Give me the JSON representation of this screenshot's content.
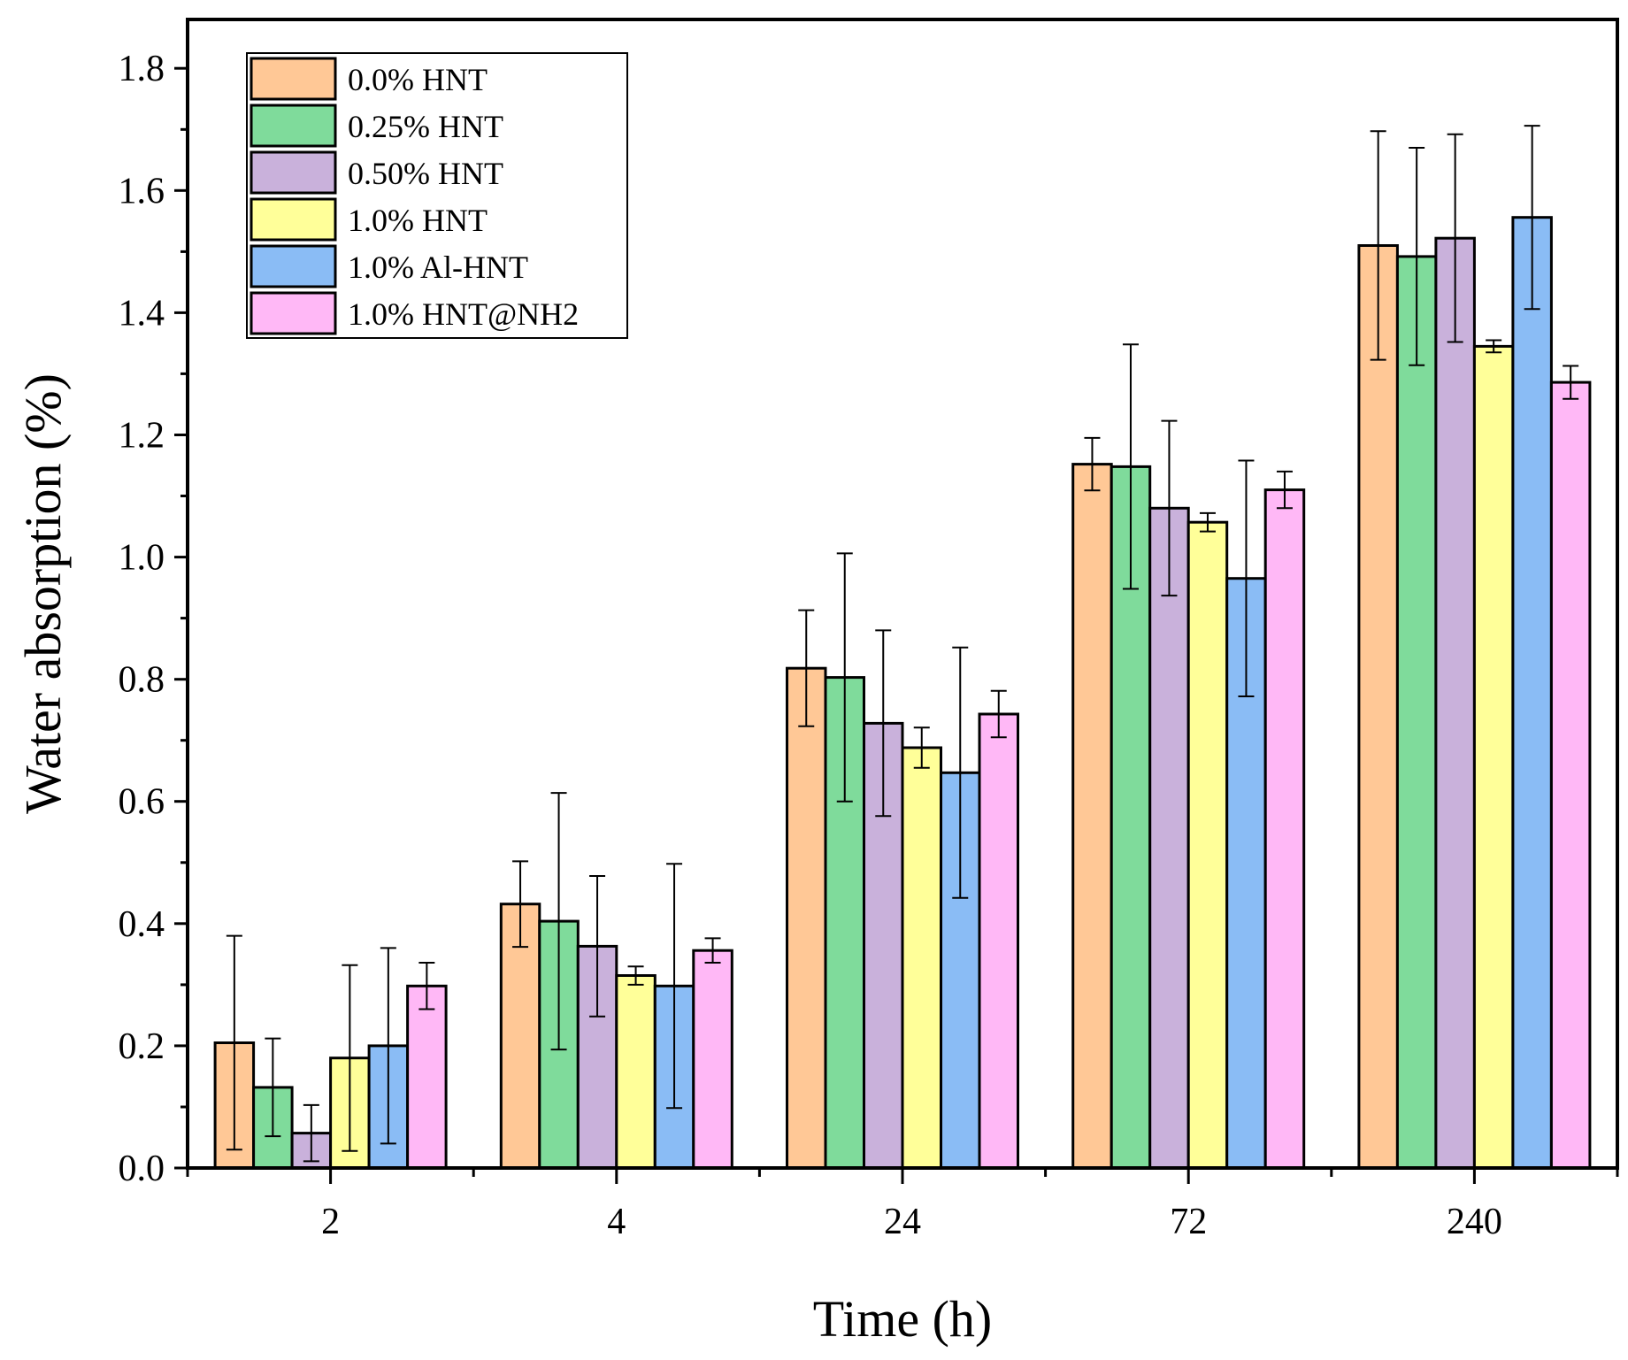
{
  "chart_data": {
    "type": "bar",
    "title": "",
    "xlabel": "Time (h)",
    "ylabel": "Water absorption (%)",
    "ylim": [
      0,
      1.88
    ],
    "yticks": [
      "0.0",
      "0.2",
      "0.4",
      "0.6",
      "0.8",
      "1.0",
      "1.2",
      "1.4",
      "1.6",
      "1.8"
    ],
    "categories": [
      "2",
      "4",
      "24",
      "72",
      "240"
    ],
    "legend_position": "top-left",
    "grid": false,
    "series": [
      {
        "name": "0.0% HNT",
        "color": "#FFC896",
        "values": [
          0.205,
          0.432,
          0.818,
          1.152,
          1.51
        ],
        "errors": [
          0.175,
          0.07,
          0.095,
          0.043,
          0.187
        ]
      },
      {
        "name": "0.25% HNT",
        "color": "#7FDB9B",
        "values": [
          0.132,
          0.404,
          0.803,
          1.148,
          1.492
        ],
        "errors": [
          0.08,
          0.21,
          0.203,
          0.2,
          0.178
        ]
      },
      {
        "name": "0.50% HNT",
        "color": "#C9B1DB",
        "values": [
          0.057,
          0.363,
          0.728,
          1.08,
          1.522
        ],
        "errors": [
          0.046,
          0.115,
          0.152,
          0.143,
          0.17
        ]
      },
      {
        "name": "1.0% HNT",
        "color": "#FFFF99",
        "values": [
          0.18,
          0.315,
          0.688,
          1.057,
          1.345
        ],
        "errors": [
          0.152,
          0.015,
          0.033,
          0.015,
          0.01
        ]
      },
      {
        "name": "1.0% Al-HNT",
        "color": "#8ABCF5",
        "values": [
          0.2,
          0.298,
          0.647,
          0.965,
          1.556
        ],
        "errors": [
          0.16,
          0.2,
          0.205,
          0.193,
          0.15
        ]
      },
      {
        "name": "1.0% HNT@NH2",
        "color": "#FFB8F6",
        "values": [
          0.298,
          0.356,
          0.743,
          1.11,
          1.286
        ],
        "errors": [
          0.038,
          0.02,
          0.038,
          0.03,
          0.027
        ]
      }
    ]
  }
}
